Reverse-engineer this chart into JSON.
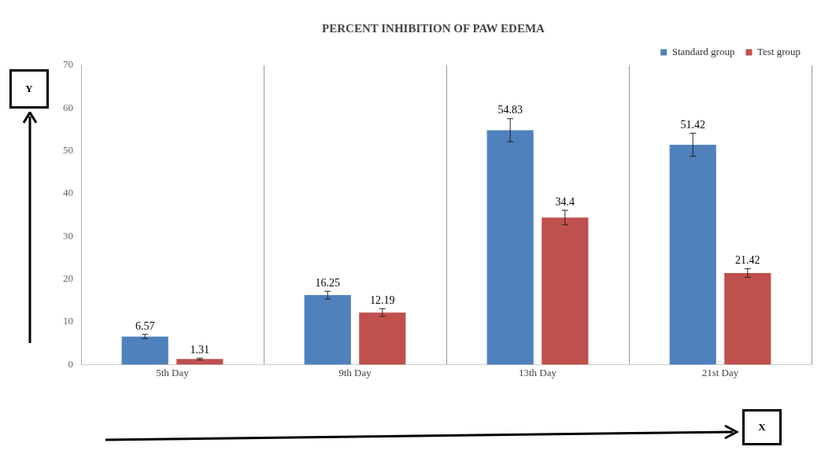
{
  "chart_data": {
    "type": "bar",
    "title": "PERCENT INHIBITION OF PAW EDEMA",
    "xlabel": "X",
    "ylabel": "Y",
    "categories": [
      "5th Day",
      "9th Day",
      "13th Day",
      "21st Day"
    ],
    "series": [
      {
        "name": "Standard group",
        "color": "#4f81bd",
        "values": [
          6.57,
          16.25,
          54.83,
          51.42
        ],
        "errors": [
          0.5,
          0.9,
          2.7,
          2.7
        ]
      },
      {
        "name": "Test group",
        "color": "#c0504d",
        "values": [
          1.31,
          12.19,
          34.4,
          21.42
        ],
        "errors": [
          0.2,
          0.9,
          1.7,
          1.0
        ]
      }
    ],
    "ylim": [
      0,
      70
    ],
    "yticks": [
      0,
      10,
      20,
      30,
      40,
      50,
      60,
      70
    ],
    "grid": "x",
    "legend": "top right",
    "data_labels": true
  }
}
